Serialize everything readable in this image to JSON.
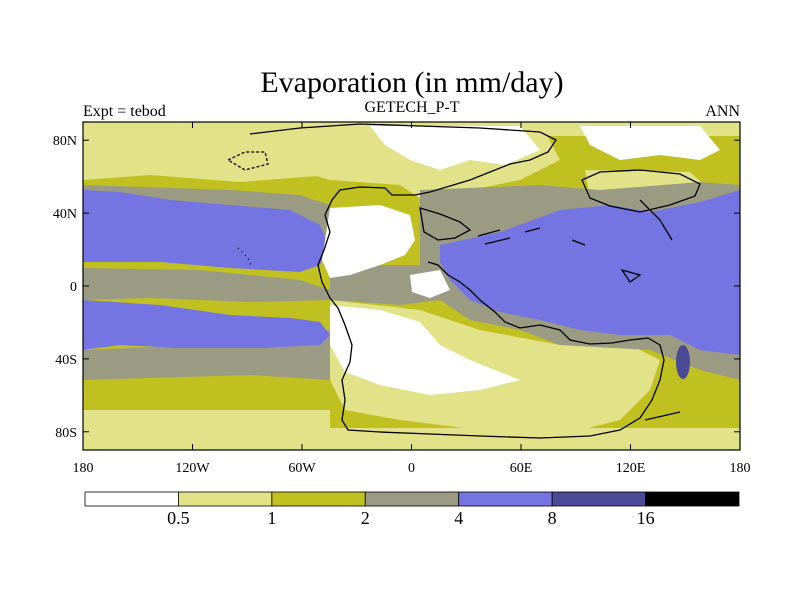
{
  "title": "Evaporation (in mm/day)",
  "left_label": "Expt = tebod",
  "center_label": "GETECH_P-T",
  "right_label": "ANN",
  "y_ticks": [
    {
      "label": "80N",
      "lat": 80
    },
    {
      "label": "40N",
      "lat": 40
    },
    {
      "label": "0",
      "lat": 0
    },
    {
      "label": "40S",
      "lat": -40
    },
    {
      "label": "80S",
      "lat": -80
    }
  ],
  "x_ticks": [
    {
      "label": "180",
      "lon": -180
    },
    {
      "label": "120W",
      "lon": -120
    },
    {
      "label": "60W",
      "lon": -60
    },
    {
      "label": "0",
      "lon": 0
    },
    {
      "label": "60E",
      "lon": 60
    },
    {
      "label": "120E",
      "lon": 120
    },
    {
      "label": "180",
      "lon": 180
    }
  ],
  "colorbar": {
    "colors": [
      "#ffffff",
      "#e2e288",
      "#c0c020",
      "#9b9b84",
      "#7474e2",
      "#4a4a96",
      "#000000"
    ],
    "labels": [
      "0.5",
      "1",
      "2",
      "4",
      "8",
      "16"
    ]
  },
  "map_data": {
    "lon_range": [
      -180,
      180
    ],
    "lat_range": [
      -90,
      90
    ],
    "units": "mm/day"
  }
}
